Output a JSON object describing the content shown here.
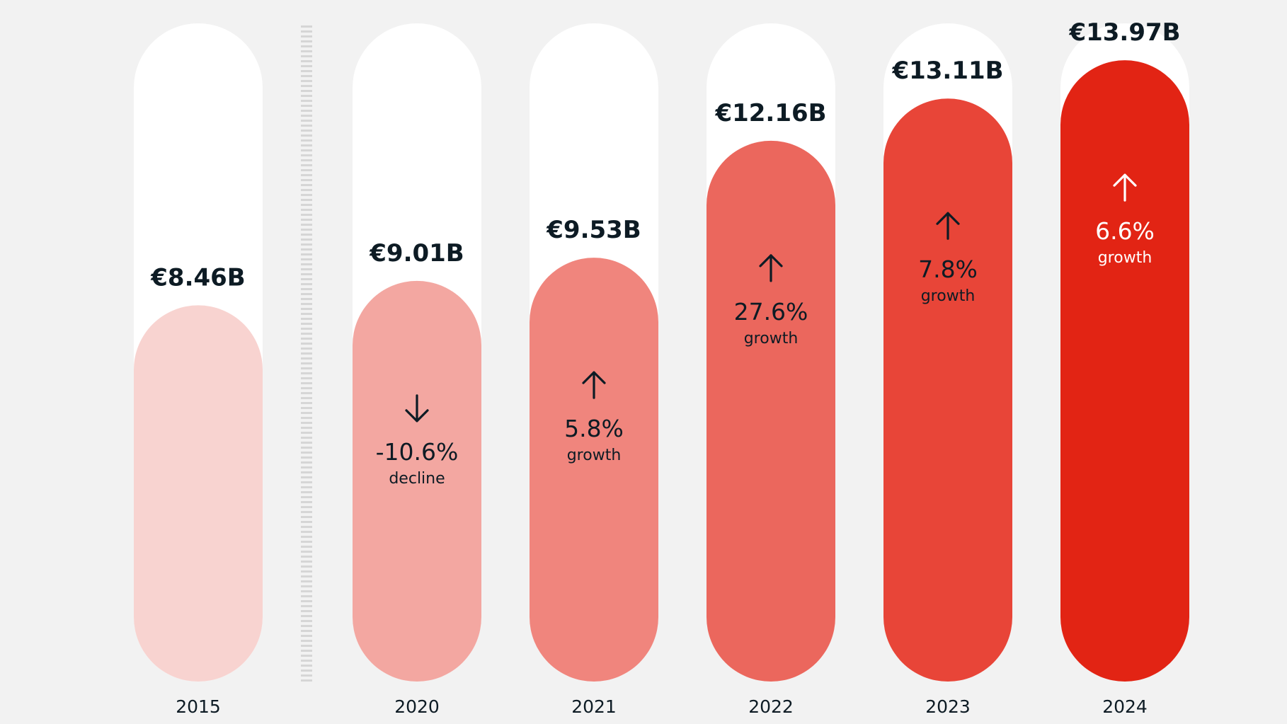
{
  "chart_data": {
    "type": "bar",
    "categories": [
      "2015",
      "2020",
      "2021",
      "2022",
      "2023",
      "2024"
    ],
    "values": [
      8.46,
      9.01,
      9.53,
      12.16,
      13.11,
      13.97
    ],
    "value_labels": [
      "€8.46B",
      "€9.01B",
      "€9.53B",
      "€12.16B",
      "€13.11B",
      "€13.97B"
    ],
    "changes": [
      null,
      {
        "percent": "-10.6%",
        "label": "decline",
        "direction": "down"
      },
      {
        "percent": "5.8%",
        "label": "growth",
        "direction": "up"
      },
      {
        "percent": "27.6%",
        "label": "growth",
        "direction": "up"
      },
      {
        "percent": "7.8%",
        "label": "growth",
        "direction": "up"
      },
      {
        "percent": "6.6%",
        "label": "growth",
        "direction": "up"
      }
    ],
    "bar_colors": [
      "#f8d3d0",
      "#f3a7a1",
      "#f0857d",
      "#eb675d",
      "#e84538",
      "#e22414"
    ],
    "track_color": "#ffffff",
    "background_color": "#f2f2f2",
    "value_label_color": "#0d1b24",
    "change_text_colors": [
      "#0d1b24",
      "#0d1b24",
      "#0d1b24",
      "#0d1b24",
      "#0d1b24",
      "#ffffff"
    ],
    "axis_break_after": "2015",
    "ylim": [
      0,
      14.8
    ],
    "grid": false,
    "legend": "none"
  }
}
